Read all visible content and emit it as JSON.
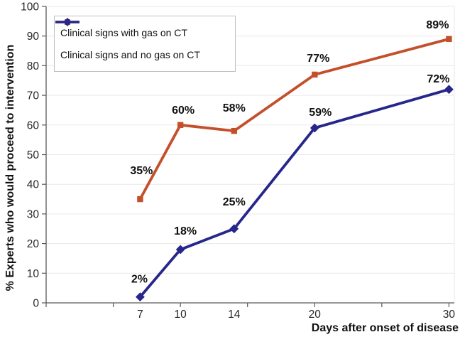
{
  "chart_data": {
    "type": "line",
    "title": "",
    "xlabel": "Days after onset of disease",
    "ylabel": "% Experts who would proceed to intervention",
    "x": [
      7,
      10,
      14,
      20,
      30
    ],
    "xtick_labels": [
      "7",
      "10",
      "14",
      "20",
      "30"
    ],
    "xtick_marks": [
      0,
      5,
      10,
      15,
      20,
      25,
      30
    ],
    "x_axis_range": [
      0,
      30.4
    ],
    "ylim": [
      0,
      100
    ],
    "ytick_step": 10,
    "grid": "horizontal-only",
    "legend_position": "top-left-inside-border",
    "series": [
      {
        "name": "Clinical signs with gas on CT",
        "color": "#C3502B",
        "marker": "square",
        "values": [
          35,
          60,
          58,
          77,
          89
        ],
        "point_labels": [
          "35%",
          "60%",
          "58%",
          "77%",
          "89%"
        ],
        "label_offsets": [
          [
            2,
            -35
          ],
          [
            4,
            -16
          ],
          [
            0,
            -27
          ],
          [
            5,
            -18
          ],
          [
            -16,
            -15
          ]
        ]
      },
      {
        "name": "Clinical signs and no gas on CT",
        "color": "#26268B",
        "marker": "diamond",
        "values": [
          2,
          18,
          25,
          59,
          72
        ],
        "point_labels": [
          "2%",
          "18%",
          "25%",
          "59%",
          "72%"
        ],
        "label_offsets": [
          [
            -1,
            -20
          ],
          [
            7,
            -21
          ],
          [
            0,
            -33
          ],
          [
            8,
            -17
          ],
          [
            -15,
            -10
          ]
        ]
      }
    ],
    "colors": {
      "background": "#FFFFFF",
      "axis": "#595959",
      "grid": "#E9E9E9",
      "tick_text": "#262626",
      "data_label_text": "#111111",
      "legend_border": "#BFBFBF"
    }
  }
}
